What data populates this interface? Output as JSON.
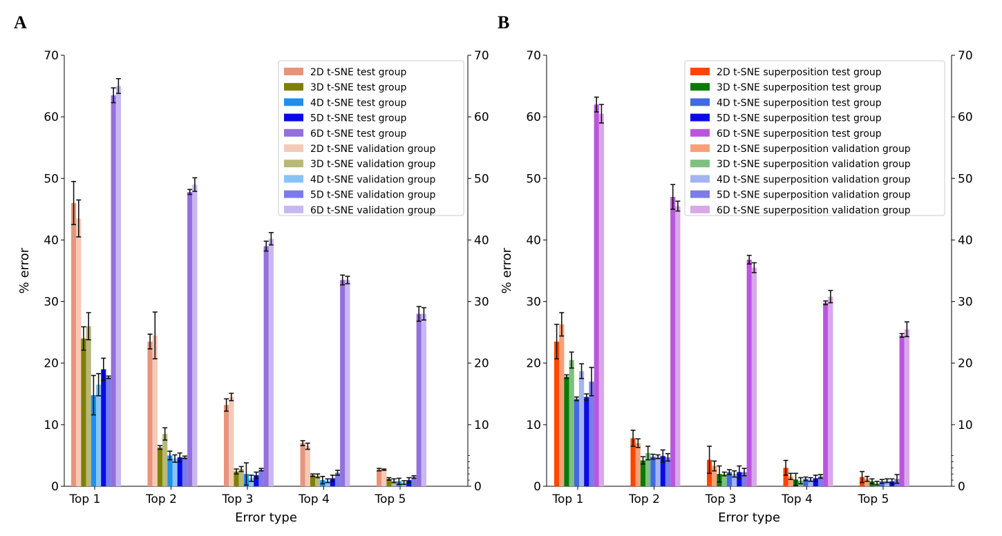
{
  "figure": {
    "panel_letters": [
      "A",
      "B"
    ]
  },
  "chart_data": [
    {
      "panel": "A",
      "type": "bar",
      "xlabel": "Error type",
      "ylabel": "% error",
      "ylim": [
        0,
        70
      ],
      "yticks": [
        0,
        10,
        20,
        30,
        40,
        50,
        60,
        70
      ],
      "right_axis_ticks": [
        0,
        10,
        20,
        30,
        40,
        50,
        60,
        70
      ],
      "legend_position": "top-right",
      "categories": [
        "Top 1",
        "Top 2",
        "Top 3",
        "Top 4",
        "Top 5"
      ],
      "series": [
        {
          "name": "2D t-SNE test group",
          "color": "#e8947a",
          "values": [
            46.0,
            23.5,
            13.2,
            7.0,
            2.7
          ],
          "errors": [
            3.5,
            1.2,
            1.0,
            0.4,
            0.2
          ]
        },
        {
          "name": "2D t-SNE validation group",
          "color": "#f5c9b8",
          "values": [
            43.5,
            24.5,
            14.5,
            6.5,
            2.7
          ],
          "errors": [
            3.0,
            3.8,
            0.6,
            0.5,
            0.1
          ]
        },
        {
          "name": "3D t-SNE test group",
          "color": "#7f7f00",
          "values": [
            24.0,
            6.3,
            2.4,
            1.8,
            1.2
          ],
          "errors": [
            1.9,
            0.3,
            0.4,
            0.2,
            0.2
          ]
        },
        {
          "name": "3D t-SNE validation group",
          "color": "#b8b87a",
          "values": [
            26.0,
            8.5,
            2.8,
            1.7,
            0.9
          ],
          "errors": [
            2.2,
            1.0,
            0.4,
            0.3,
            0.3
          ]
        },
        {
          "name": "4D t-SNE test group",
          "color": "#1e8ff0",
          "values": [
            14.8,
            5.0,
            2.0,
            1.0,
            0.8
          ],
          "errors": [
            3.2,
            0.7,
            1.8,
            0.6,
            0.5
          ]
        },
        {
          "name": "4D t-SNE validation group",
          "color": "#87c4f5",
          "values": [
            16.5,
            4.5,
            1.3,
            0.9,
            0.6
          ],
          "errors": [
            1.8,
            0.6,
            0.5,
            0.3,
            0.3
          ]
        },
        {
          "name": "5D t-SNE test group",
          "color": "#0a0ae6",
          "values": [
            19.0,
            4.7,
            1.8,
            1.3,
            1.0
          ],
          "errors": [
            1.8,
            0.7,
            0.5,
            0.5,
            0.4
          ]
        },
        {
          "name": "5D t-SNE validation group",
          "color": "#7b7bec",
          "values": [
            17.7,
            4.7,
            2.7,
            2.2,
            1.5
          ],
          "errors": [
            0.2,
            0.2,
            0.2,
            0.4,
            0.2
          ]
        },
        {
          "name": "6D t-SNE test group",
          "color": "#9370db",
          "values": [
            63.5,
            47.8,
            39.0,
            33.5,
            28.0
          ],
          "errors": [
            1.2,
            0.4,
            0.8,
            0.8,
            1.2
          ]
        },
        {
          "name": "6D t-SNE validation group",
          "color": "#c8b8f0",
          "values": [
            65.0,
            49.0,
            40.2,
            33.5,
            28.0
          ],
          "errors": [
            1.2,
            1.1,
            1.0,
            0.6,
            1.0
          ]
        }
      ],
      "legend_order": [
        "2D t-SNE test group",
        "3D t-SNE test group",
        "4D t-SNE test group",
        "5D t-SNE test group",
        "6D t-SNE test group",
        "2D t-SNE validation group",
        "3D t-SNE validation group",
        "4D t-SNE validation group",
        "5D t-SNE validation group",
        "6D t-SNE validation group"
      ]
    },
    {
      "panel": "B",
      "type": "bar",
      "xlabel": "Error type",
      "ylabel": "% error",
      "ylim": [
        0,
        70
      ],
      "yticks": [
        0,
        10,
        20,
        30,
        40,
        50,
        60,
        70
      ],
      "right_axis_ticks": [
        0,
        10,
        20,
        30,
        40,
        50,
        60,
        70
      ],
      "legend_position": "top-right",
      "categories": [
        "Top 1",
        "Top 2",
        "Top 3",
        "Top 4",
        "Top 5"
      ],
      "series": [
        {
          "name": "2D t-SNE superposition test group",
          "color": "#ff4500",
          "values": [
            23.5,
            7.8,
            4.3,
            3.0,
            1.5
          ],
          "errors": [
            2.8,
            1.3,
            2.2,
            1.2,
            0.9
          ]
        },
        {
          "name": "2D t-SNE superposition validation group",
          "color": "#f7a079",
          "values": [
            26.3,
            7.0,
            3.3,
            1.6,
            1.2
          ],
          "errors": [
            1.9,
            0.7,
            0.8,
            0.5,
            0.4
          ]
        },
        {
          "name": "3D t-SNE superposition test group",
          "color": "#077a07",
          "values": [
            17.8,
            4.2,
            2.0,
            1.1,
            0.8
          ],
          "errors": [
            0.3,
            0.6,
            1.3,
            1.0,
            0.4
          ]
        },
        {
          "name": "3D t-SNE superposition validation group",
          "color": "#7ec07e",
          "values": [
            20.5,
            5.4,
            2.0,
            0.9,
            0.5
          ],
          "errors": [
            1.3,
            1.1,
            0.3,
            0.5,
            0.3
          ]
        },
        {
          "name": "4D t-SNE superposition test group",
          "color": "#4169e1",
          "values": [
            14.2,
            4.8,
            2.3,
            1.2,
            0.8
          ],
          "errors": [
            0.3,
            0.4,
            0.4,
            0.3,
            0.3
          ]
        },
        {
          "name": "4D t-SNE superposition validation group",
          "color": "#a3b4f0",
          "values": [
            18.7,
            4.8,
            2.0,
            1.1,
            0.9
          ],
          "errors": [
            1.2,
            0.3,
            0.5,
            0.3,
            0.3
          ]
        },
        {
          "name": "5D t-SNE superposition test group",
          "color": "#0a0ae6",
          "values": [
            14.5,
            4.9,
            2.3,
            1.3,
            0.8
          ],
          "errors": [
            0.5,
            1.0,
            1.0,
            0.5,
            0.4
          ]
        },
        {
          "name": "5D t-SNE superposition validation group",
          "color": "#7b7bec",
          "values": [
            17.0,
            4.7,
            2.3,
            1.6,
            1.2
          ],
          "errors": [
            2.3,
            0.6,
            0.6,
            0.3,
            0.7
          ]
        },
        {
          "name": "6D t-SNE superposition test group",
          "color": "#bb55dd",
          "values": [
            62.0,
            47.0,
            36.8,
            29.8,
            24.5
          ],
          "errors": [
            1.2,
            2.0,
            0.7,
            0.3,
            0.3
          ]
        },
        {
          "name": "6D t-SNE superposition validation group",
          "color": "#d8a8e8",
          "values": [
            60.5,
            45.5,
            35.5,
            30.8,
            25.5
          ],
          "errors": [
            1.5,
            0.8,
            0.8,
            1.0,
            1.2
          ]
        }
      ],
      "legend_order": [
        "2D t-SNE superposition test group",
        "3D t-SNE superposition test group",
        "4D t-SNE superposition test group",
        "5D t-SNE superposition test group",
        "6D t-SNE superposition test group",
        "2D t-SNE superposition validation group",
        "3D t-SNE superposition validation group",
        "4D t-SNE superposition validation group",
        "5D t-SNE superposition validation group",
        "6D t-SNE superposition validation group"
      ]
    }
  ]
}
